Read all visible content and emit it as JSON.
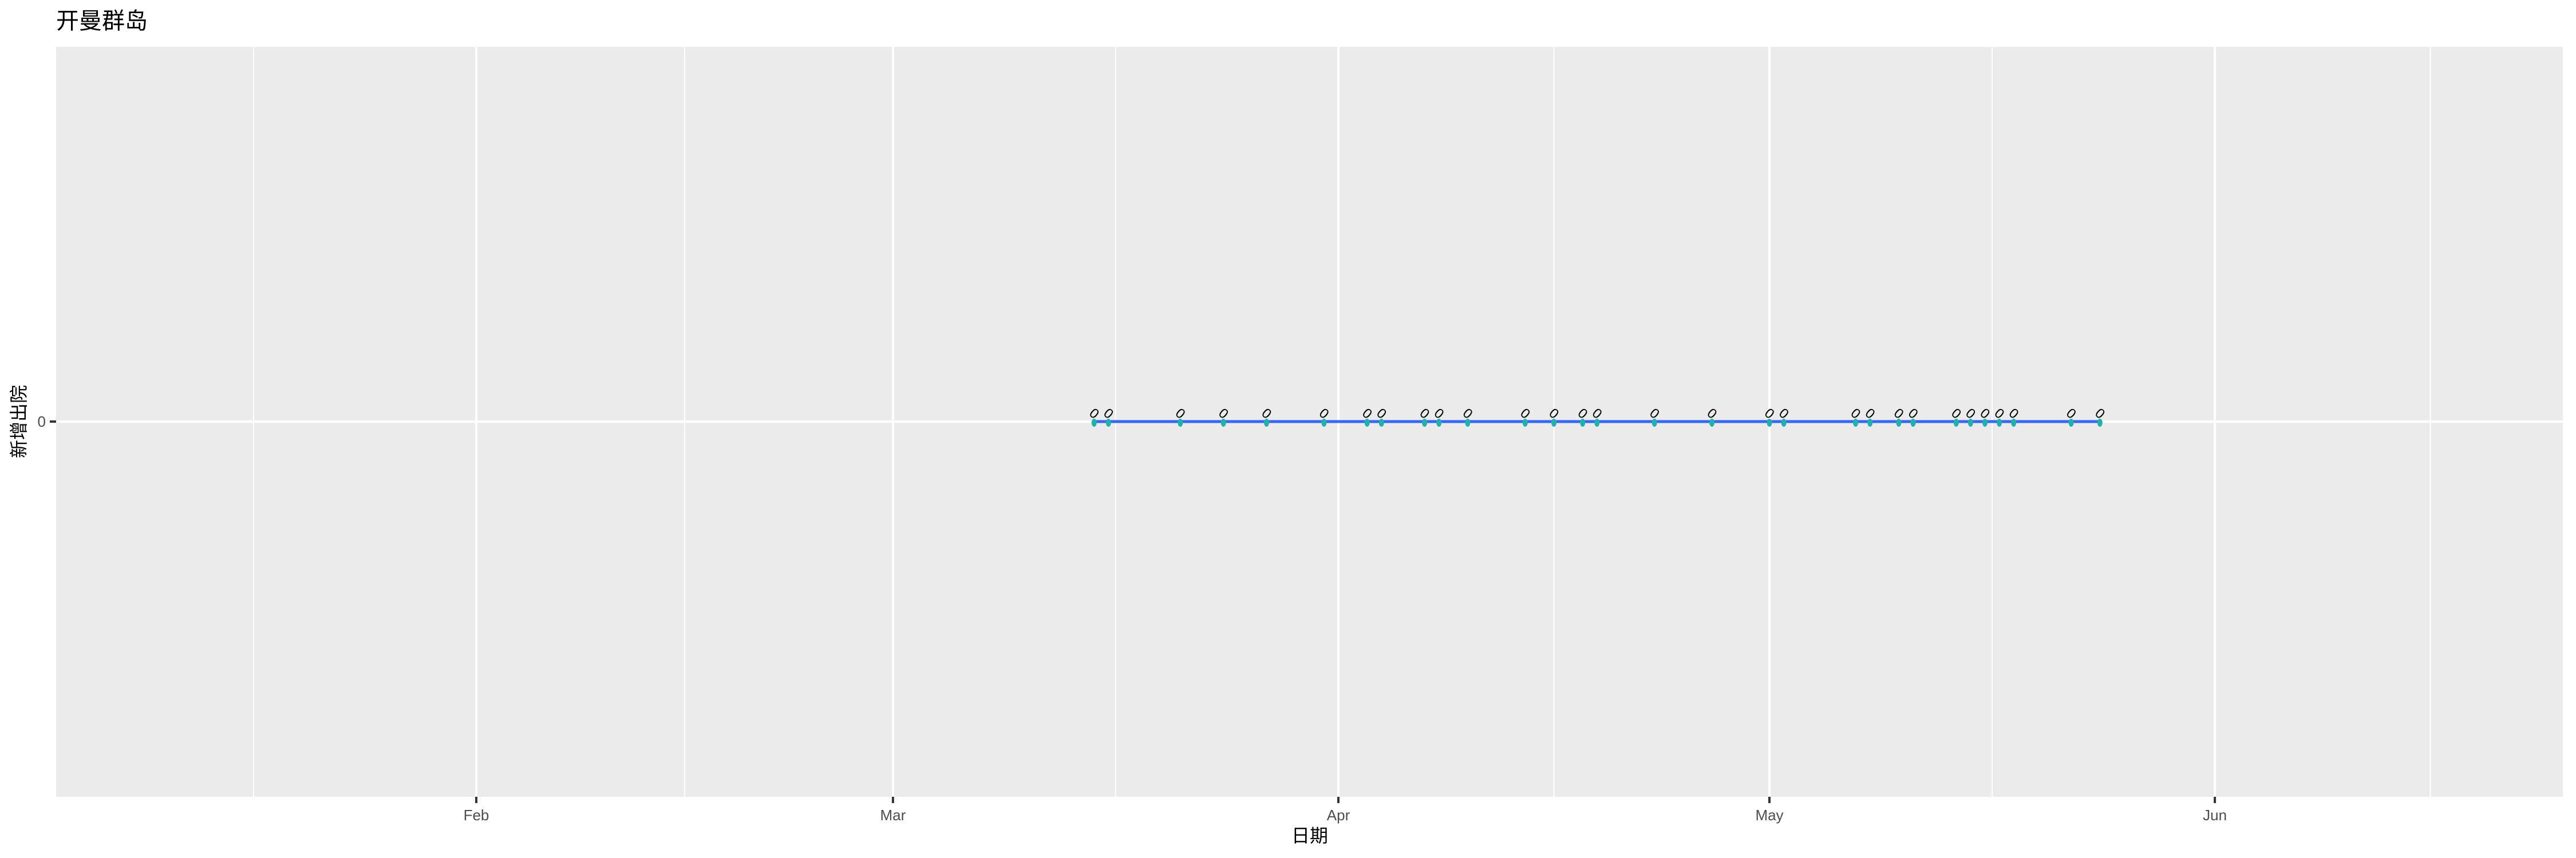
{
  "chart_data": {
    "type": "line",
    "title": "开曼群岛",
    "xlabel": "日期",
    "ylabel": "新增出院",
    "x_tick_labels": [
      "Feb",
      "Mar",
      "Apr",
      "May",
      "Jun"
    ],
    "y_tick_labels": [
      "0"
    ],
    "xlim": [
      "Jan 2",
      "Jun 25"
    ],
    "grid": true,
    "colors": {
      "line": "#3366FF",
      "points": "#20B2AA",
      "panel": "#EBEBEB",
      "grid": "#FFFFFF"
    },
    "series": [
      {
        "x": [
          "Mar 15",
          "Mar 16",
          "Mar 21",
          "Mar 24",
          "Mar 27",
          "Mar 31",
          "Apr 3",
          "Apr 4",
          "Apr 7",
          "Apr 8",
          "Apr 10",
          "Apr 14",
          "Apr 16",
          "Apr 18",
          "Apr 19",
          "Apr 23",
          "Apr 27",
          "May 1",
          "May 2",
          "May 7",
          "May 8",
          "May 10",
          "May 11",
          "May 14",
          "May 15",
          "May 16",
          "May 17",
          "May 18",
          "May 22",
          "May 24"
        ],
        "y": [
          0,
          0,
          0,
          0,
          0,
          0,
          0,
          0,
          0,
          0,
          0,
          0,
          0,
          0,
          0,
          0,
          0,
          0,
          0,
          0,
          0,
          0,
          0,
          0,
          0,
          0,
          0,
          0,
          0,
          0
        ],
        "labels": [
          "0",
          "0",
          "0",
          "0",
          "0",
          "0",
          "0",
          "0",
          "0",
          "0",
          "0",
          "0",
          "0",
          "0",
          "0",
          "0",
          "0",
          "0",
          "0",
          "0",
          "0",
          "0",
          "0",
          "0",
          "0",
          "0",
          "0",
          "0",
          "0",
          "0"
        ]
      }
    ]
  }
}
